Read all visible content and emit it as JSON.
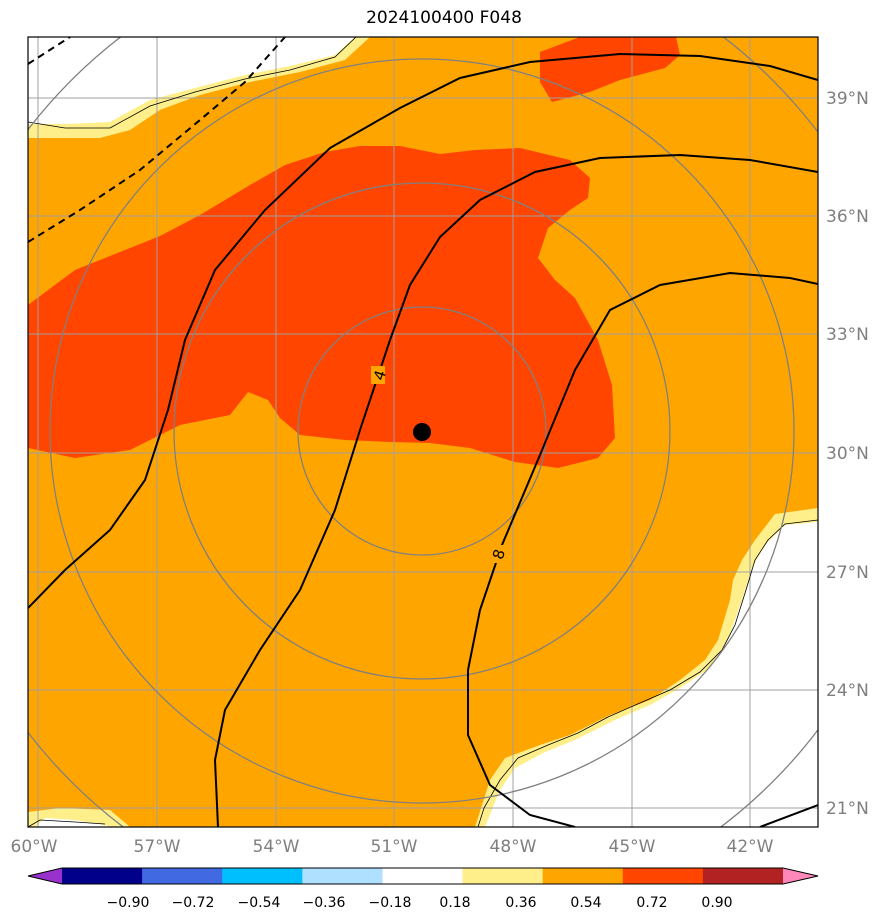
{
  "title": "2024100400 F048",
  "map": {
    "lon_labels": [
      "60°W",
      "57°W",
      "54°W",
      "51°W",
      "48°W",
      "45°W",
      "42°W"
    ],
    "lat_labels": [
      "39°N",
      "36°N",
      "33°N",
      "30°N",
      "27°N",
      "24°N",
      "21°N"
    ],
    "contour_labels": [
      "4",
      "8"
    ],
    "center_marker": "black dot"
  },
  "colorbar": {
    "tick_labels": [
      "−0.90",
      "−0.72",
      "−0.54",
      "−0.36",
      "−0.18",
      "0.18",
      "0.36",
      "0.54",
      "0.72",
      "0.90"
    ],
    "colors": [
      "#9932cc",
      "#00008b",
      "#4169e1",
      "#00bfff",
      "#b0e0ff",
      "#ffffff",
      "#ffef8a",
      "#ffa500",
      "#ff4500",
      "#b22222",
      "#ff88bb"
    ]
  }
}
